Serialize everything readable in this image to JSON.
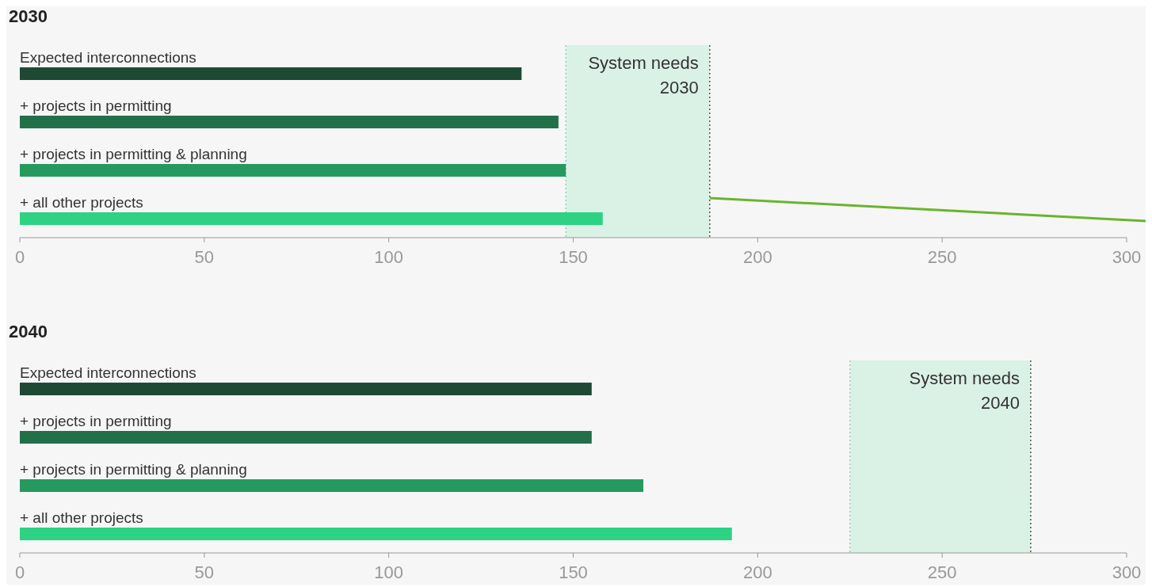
{
  "chart_data": [
    {
      "type": "bar",
      "orientation": "horizontal",
      "title": "2030",
      "categories": [
        "Expected interconnections",
        "+ projects in permitting",
        "+ projects in permitting & planning",
        "+ all other projects"
      ],
      "values": [
        136,
        146,
        148,
        158
      ],
      "colors": [
        "#1e4a35",
        "#22704a",
        "#269a5e",
        "#2dd283"
      ],
      "xlim": [
        0,
        300
      ],
      "xticks": [
        0,
        50,
        100,
        150,
        200,
        250,
        300
      ],
      "grid": false,
      "bands": [
        {
          "axis": "x",
          "from": 148,
          "to": 187,
          "label": "System needs 2030",
          "color": "#daf1e6"
        }
      ],
      "ref_lines": [
        {
          "axis": "x",
          "value": 148,
          "color": "#99cccc",
          "line_style": "dotted"
        },
        {
          "axis": "x",
          "value": 187,
          "color": "#555555",
          "line_style": "dotted"
        }
      ]
    },
    {
      "type": "bar",
      "orientation": "horizontal",
      "title": "2040",
      "categories": [
        "Expected interconnections",
        "+ projects in permitting",
        "+ projects in permitting & planning",
        "+ all other projects"
      ],
      "values": [
        155,
        155,
        169,
        193
      ],
      "colors": [
        "#1e4a35",
        "#22704a",
        "#269a5e",
        "#2dd283"
      ],
      "xlim": [
        0,
        300
      ],
      "xticks": [
        0,
        50,
        100,
        150,
        200,
        250,
        300
      ],
      "grid": false,
      "bands": [
        {
          "axis": "x",
          "from": 225,
          "to": 274,
          "label": "System needs 2040",
          "color": "#daf1e6"
        }
      ],
      "ref_lines": [
        {
          "axis": "x",
          "value": 225,
          "color": "#99cccc",
          "line_style": "dotted"
        },
        {
          "axis": "x",
          "value": 274,
          "color": "#555555",
          "line_style": "dotted"
        }
      ]
    }
  ]
}
